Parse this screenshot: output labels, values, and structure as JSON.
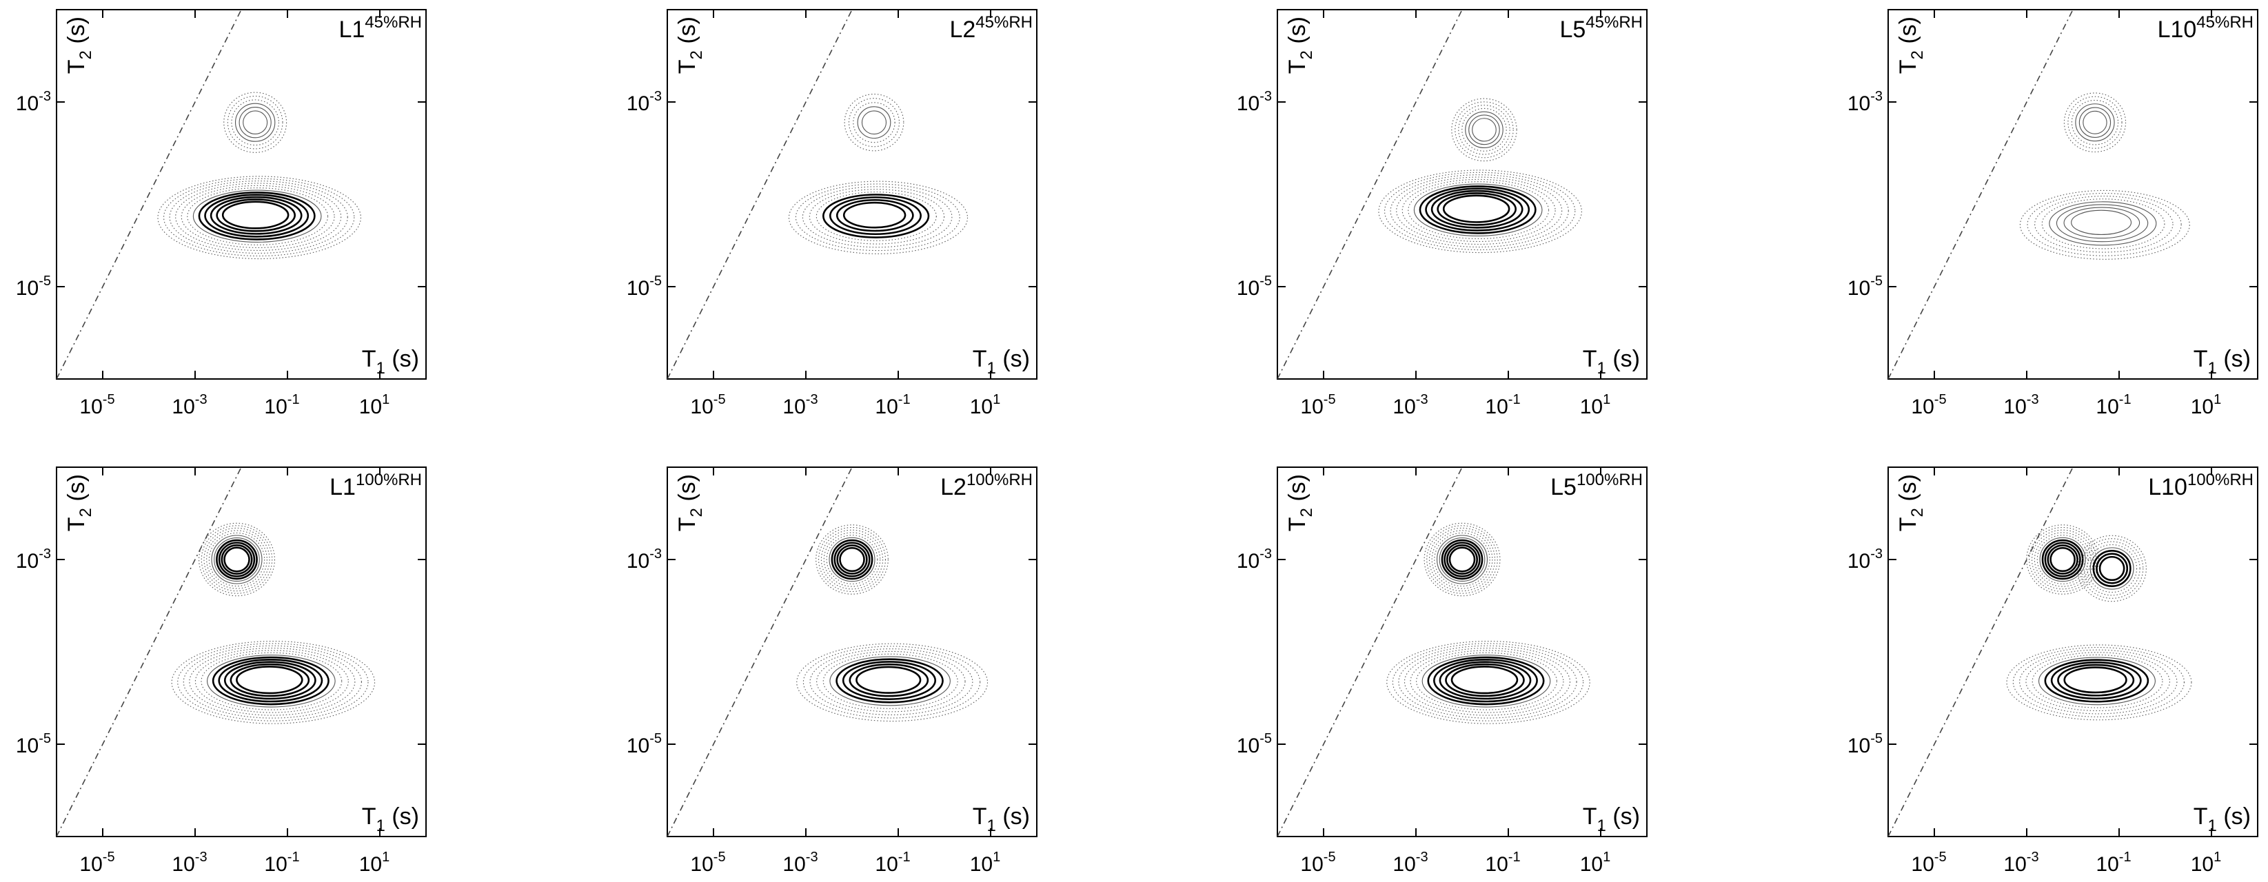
{
  "axis_text": {
    "x_label_main": "T",
    "x_label_sub": "1",
    "x_label_unit": "(s)",
    "y_label_main": "T",
    "y_label_sub": "2",
    "y_label_unit": "(s)",
    "tick_base": "10",
    "x_tick_exponents": [
      "-5",
      "-3",
      "-1",
      "1"
    ],
    "y_tick_exponents": [
      "-3",
      "-5"
    ]
  },
  "colors": {
    "contour_strong": "#000000",
    "contour_faint": "#555555",
    "diagonal": "#444444"
  },
  "chart_data": [
    {
      "type": "contour",
      "panel_label": "L1",
      "panel_superscript": "45%RH",
      "xscale": "log",
      "yscale": "log",
      "xlim": [
        1e-06,
        100
      ],
      "ylim": [
        1e-06,
        0.01
      ],
      "reference_line": "T1 = T2",
      "peaks": [
        {
          "t1": 0.02,
          "t2": 6e-05,
          "relative_intensity": 1.0
        },
        {
          "t1": 0.02,
          "t2": 0.0006,
          "relative_intensity": 0.3
        }
      ]
    },
    {
      "type": "contour",
      "panel_label": "L2",
      "panel_superscript": "45%RH",
      "xscale": "log",
      "yscale": "log",
      "xlim": [
        1e-06,
        100
      ],
      "ylim": [
        1e-06,
        0.01
      ],
      "reference_line": "T1 = T2",
      "peaks": [
        {
          "t1": 0.03,
          "t2": 6e-05,
          "relative_intensity": 0.6
        },
        {
          "t1": 0.03,
          "t2": 0.0006,
          "relative_intensity": 0.15
        }
      ]
    },
    {
      "type": "contour",
      "panel_label": "L5",
      "panel_superscript": "45%RH",
      "xscale": "log",
      "yscale": "log",
      "xlim": [
        1e-06,
        100
      ],
      "ylim": [
        1e-06,
        0.01
      ],
      "reference_line": "T1 = T2",
      "peaks": [
        {
          "t1": 0.02,
          "t2": 7e-05,
          "relative_intensity": 1.0
        },
        {
          "t1": 0.03,
          "t2": 0.0005,
          "relative_intensity": 0.4
        }
      ]
    },
    {
      "type": "contour",
      "panel_label": "L10",
      "panel_superscript": "45%RH",
      "xscale": "log",
      "yscale": "log",
      "xlim": [
        1e-06,
        100
      ],
      "ylim": [
        1e-06,
        0.01
      ],
      "reference_line": "T1 = T2",
      "peaks": [
        {
          "t1": 0.04,
          "t2": 5e-05,
          "relative_intensity": 0.45
        },
        {
          "t1": 0.03,
          "t2": 0.0006,
          "relative_intensity": 0.25
        }
      ]
    },
    {
      "type": "contour",
      "panel_label": "L1",
      "panel_superscript": "100%RH",
      "xscale": "log",
      "yscale": "log",
      "xlim": [
        1e-06,
        100
      ],
      "ylim": [
        1e-06,
        0.01
      ],
      "reference_line": "T1 = T2",
      "peaks": [
        {
          "t1": 0.04,
          "t2": 5e-05,
          "relative_intensity": 1.0
        },
        {
          "t1": 0.008,
          "t2": 0.001,
          "relative_intensity": 0.85
        }
      ]
    },
    {
      "type": "contour",
      "panel_label": "L2",
      "panel_superscript": "100%RH",
      "xscale": "log",
      "yscale": "log",
      "xlim": [
        1e-06,
        100
      ],
      "ylim": [
        1e-06,
        0.01
      ],
      "reference_line": "T1 = T2",
      "peaks": [
        {
          "t1": 0.06,
          "t2": 5e-05,
          "relative_intensity": 0.8
        },
        {
          "t1": 0.01,
          "t2": 0.001,
          "relative_intensity": 0.7
        }
      ]
    },
    {
      "type": "contour",
      "panel_label": "L5",
      "panel_superscript": "100%RH",
      "xscale": "log",
      "yscale": "log",
      "xlim": [
        1e-06,
        100
      ],
      "ylim": [
        1e-06,
        0.01
      ],
      "reference_line": "T1 = T2",
      "peaks": [
        {
          "t1": 0.03,
          "t2": 5e-05,
          "relative_intensity": 1.0
        },
        {
          "t1": 0.01,
          "t2": 0.001,
          "relative_intensity": 0.85
        }
      ]
    },
    {
      "type": "contour",
      "panel_label": "L10",
      "panel_superscript": "100%RH",
      "xscale": "log",
      "yscale": "log",
      "xlim": [
        1e-06,
        100
      ],
      "ylim": [
        1e-06,
        0.01
      ],
      "reference_line": "T1 = T2",
      "peaks": [
        {
          "t1": 0.03,
          "t2": 5e-05,
          "relative_intensity": 0.7
        },
        {
          "t1": 0.006,
          "t2": 0.001,
          "relative_intensity": 0.7
        },
        {
          "t1": 0.07,
          "t2": 0.0008,
          "relative_intensity": 0.55
        }
      ]
    }
  ]
}
